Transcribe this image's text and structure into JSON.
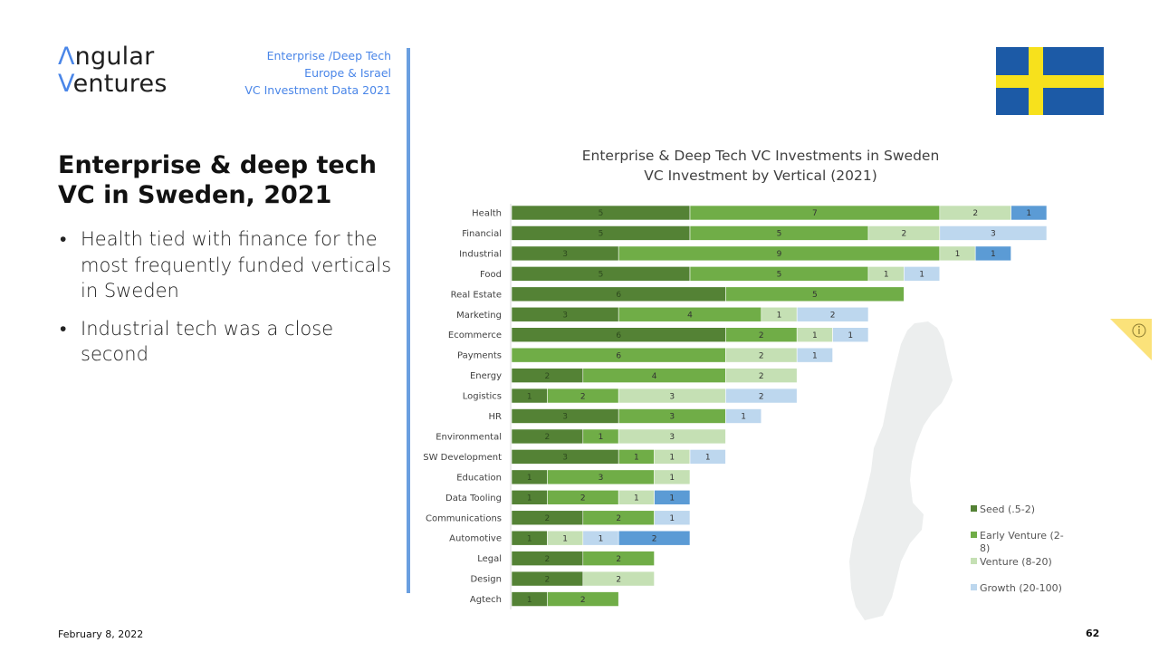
{
  "header": {
    "logo_line1_accent": "Λ",
    "logo_line1_rest": "ngular",
    "logo_line2_accent": "V",
    "logo_line2_rest": "entures",
    "subheading": [
      "Enterprise /Deep Tech",
      "Europe & Israel",
      "VC Investment Data 2021"
    ]
  },
  "flag": {
    "country": "Sweden",
    "field_color": "#1c5aa6",
    "cross_color": "#f7e11c",
    "icon": "sweden-flag-icon"
  },
  "slide": {
    "title_line1": "Enterprise & deep tech",
    "title_line2": "VC in Sweden, 2021",
    "bullets": [
      "Health tied with finance for the most frequently funded verticals in Sweden",
      "Industrial tech was a close second"
    ]
  },
  "footer": {
    "date": "February 8, 2022",
    "page_number": "62"
  },
  "info_tab": {
    "icon": "info-icon",
    "color": "#fbe27a"
  },
  "chart_data": {
    "type": "bar",
    "orientation": "horizontal",
    "stacked": true,
    "title": [
      "Enterprise & Deep Tech VC Investments in Sweden",
      "VC Investment by Vertical  (2021)"
    ],
    "xlabel": "",
    "ylabel": "",
    "xlim": [
      0,
      15
    ],
    "grid": false,
    "legend_position": "bottom-right",
    "background_image": "sweden-map-silhouette",
    "categories": [
      "Health",
      "Financial",
      "Industrial",
      "Food",
      "Real Estate",
      "Marketing",
      "Ecommerce",
      "Payments",
      "Energy",
      "Logistics",
      "HR",
      "Environmental",
      "SW Development",
      "Education",
      "Data Tooling",
      "Communications",
      "Automotive",
      "Legal",
      "Design",
      "Agtech"
    ],
    "series": [
      {
        "name": "Seed (.5-2)",
        "color": "#548235",
        "in_legend": true,
        "values": [
          5,
          5,
          3,
          5,
          6,
          3,
          6,
          0,
          2,
          1,
          3,
          2,
          3,
          1,
          1,
          2,
          1,
          2,
          2,
          1
        ]
      },
      {
        "name": "Early Venture (2-8)",
        "color": "#70ad47",
        "in_legend": true,
        "values": [
          7,
          5,
          9,
          5,
          5,
          4,
          2,
          6,
          4,
          2,
          3,
          1,
          1,
          3,
          2,
          2,
          0,
          2,
          0,
          2
        ]
      },
      {
        "name": "Venture (8-20)",
        "color": "#c5e0b4",
        "in_legend": true,
        "values": [
          2,
          2,
          1,
          1,
          0,
          1,
          1,
          2,
          2,
          3,
          0,
          3,
          1,
          1,
          1,
          0,
          1,
          0,
          2,
          0
        ]
      },
      {
        "name": "Growth (20-100)",
        "color": "#bdd7ee",
        "in_legend": true,
        "values": [
          0,
          3,
          0,
          1,
          0,
          2,
          1,
          1,
          0,
          2,
          1,
          0,
          1,
          0,
          0,
          1,
          1,
          0,
          0,
          0
        ]
      },
      {
        "name": "",
        "color": "#5b9bd5",
        "in_legend": false,
        "values": [
          1,
          0,
          1,
          0,
          0,
          0,
          0,
          0,
          0,
          0,
          0,
          0,
          0,
          0,
          1,
          0,
          2,
          0,
          0,
          0
        ]
      }
    ]
  }
}
